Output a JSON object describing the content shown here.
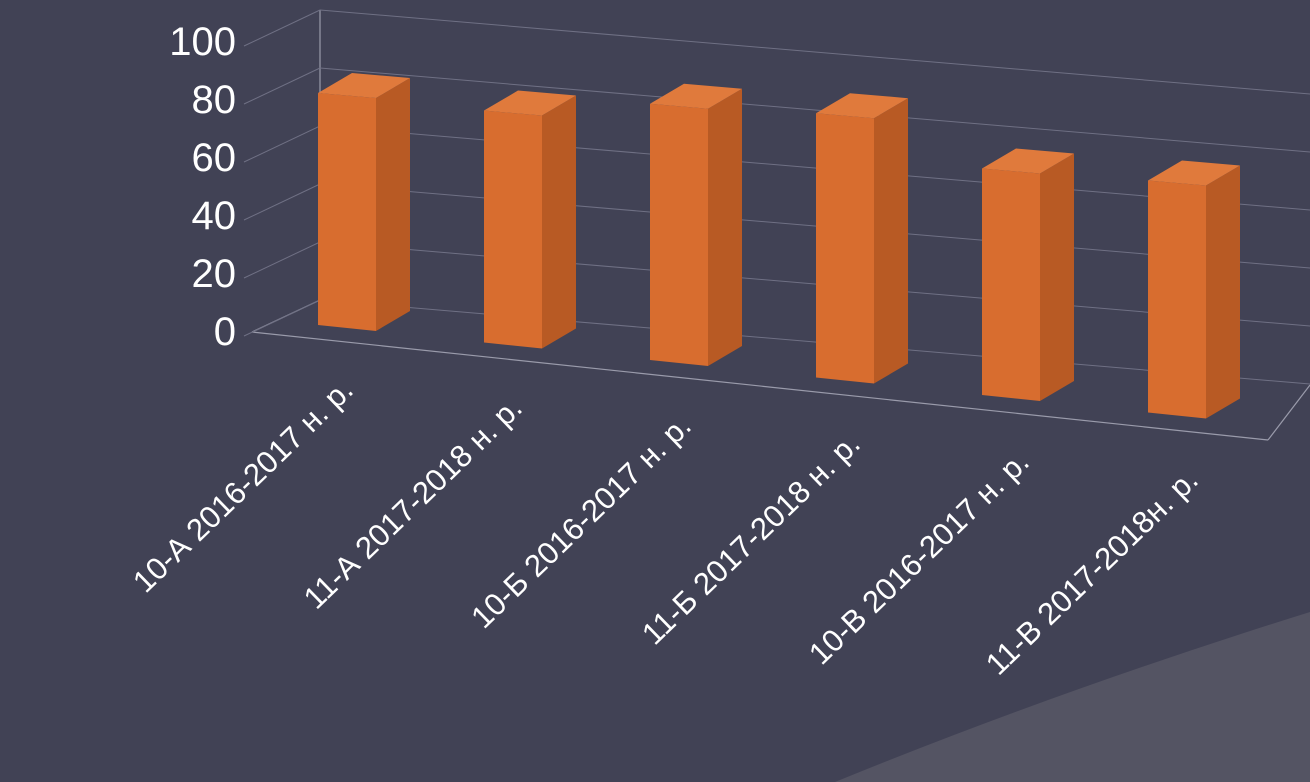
{
  "chart_data": {
    "type": "bar",
    "style": "3d-column",
    "categories": [
      "10-А 2016-2017 н. р.",
      "11-А 2017-2018 н. р.",
      "10-Б 2016-2017 н. р.",
      "11-Б 2017-2018 н. р.",
      "10-В 2016-2017 н. р.",
      "11-В 2017-2018н. р."
    ],
    "values": [
      86,
      86,
      95,
      98,
      84,
      86
    ],
    "yticks": [
      "0",
      "20",
      "40",
      "60",
      "80",
      "100"
    ],
    "ylim": [
      0,
      100
    ],
    "grid": true,
    "bar_color": "#d86d2f",
    "bar_side_color": "#b85a24",
    "bar_top_color": "#e07a3c",
    "background": "#414255",
    "corner_background": "#545463"
  }
}
